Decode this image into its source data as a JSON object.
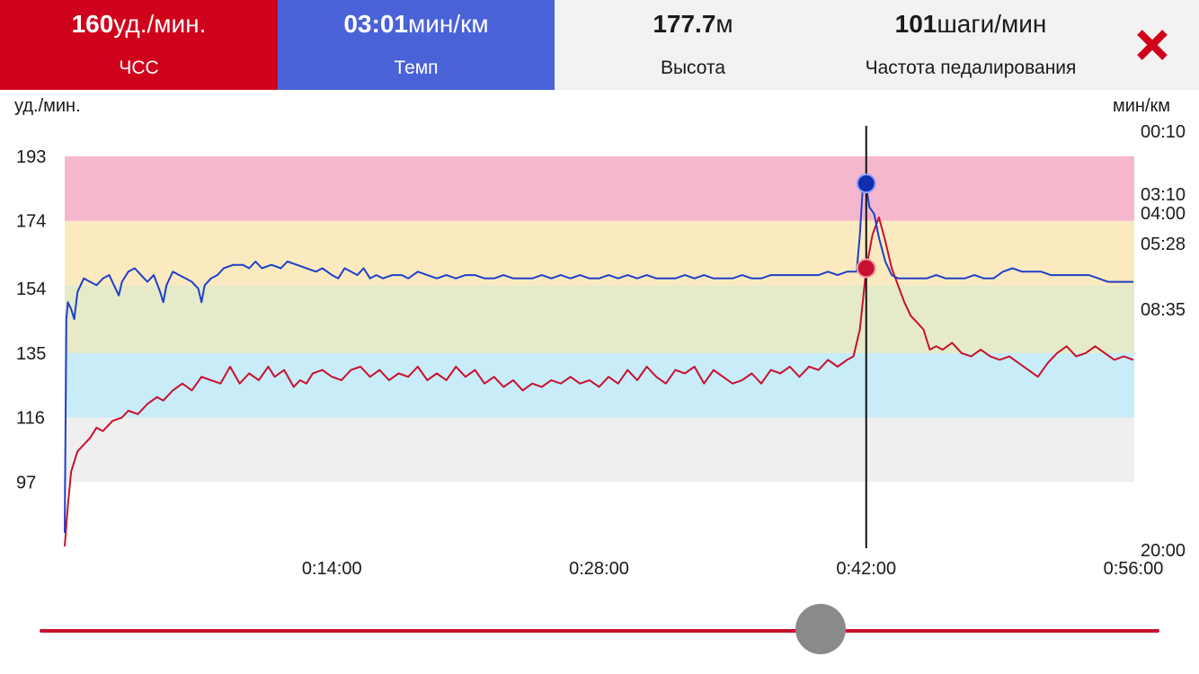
{
  "tabs": [
    {
      "value": "160",
      "unit": "уд./мин.",
      "label": "ЧСС"
    },
    {
      "value": "03:01",
      "unit": "мин/км",
      "label": "Темп"
    },
    {
      "value": "177.7",
      "unit": "м",
      "label": "Высота"
    },
    {
      "value": "101",
      "unit": "шаги/мин",
      "label": "Частота педалирования"
    }
  ],
  "icons": {
    "close": "close-icon",
    "cursor": "cursor-line"
  },
  "colors": {
    "hr": "#d0021b",
    "pace": "#1f3fc9",
    "pace_tab": "#4a62d8"
  },
  "chart_data": {
    "type": "line",
    "x_unit": "seconds",
    "xlim": [
      0,
      3360
    ],
    "x_ticks": [
      "0:14:00",
      "0:28:00",
      "0:42:00",
      "0:56:00"
    ],
    "x_tick_values": [
      840,
      1680,
      2520,
      3360
    ],
    "y_left": {
      "label": "уд./мин.",
      "ticks": [
        193,
        174,
        154,
        135,
        116,
        97
      ],
      "lim": [
        78,
        202
      ]
    },
    "y_right": {
      "label": "мин/км",
      "ticks": [
        "00:10",
        "03:10",
        "04:00",
        "05:28",
        "08:35",
        "20:00"
      ]
    },
    "zones": [
      {
        "from": 97,
        "to": 116,
        "color": "#efefef"
      },
      {
        "from": 116,
        "to": 135,
        "color": "#c8ecf8"
      },
      {
        "from": 135,
        "to": 155,
        "color": "#e5eac8"
      },
      {
        "from": 155,
        "to": 174,
        "color": "#fbeac0"
      },
      {
        "from": 174,
        "to": 193,
        "color": "#f4b7ce"
      }
    ],
    "cursor": {
      "x": 2520,
      "hr": 160,
      "pace_marker": 185
    },
    "series": [
      {
        "key": "hr",
        "color": "#c8102e",
        "points": [
          [
            0,
            78
          ],
          [
            10,
            90
          ],
          [
            20,
            100
          ],
          [
            40,
            106
          ],
          [
            60,
            108
          ],
          [
            80,
            110
          ],
          [
            100,
            113
          ],
          [
            120,
            112
          ],
          [
            150,
            115
          ],
          [
            180,
            116
          ],
          [
            200,
            118
          ],
          [
            230,
            117
          ],
          [
            260,
            120
          ],
          [
            290,
            122
          ],
          [
            310,
            121
          ],
          [
            340,
            124
          ],
          [
            370,
            126
          ],
          [
            400,
            124
          ],
          [
            430,
            128
          ],
          [
            460,
            127
          ],
          [
            490,
            126
          ],
          [
            520,
            131
          ],
          [
            550,
            126
          ],
          [
            580,
            129
          ],
          [
            610,
            127
          ],
          [
            640,
            131
          ],
          [
            660,
            128
          ],
          [
            690,
            130
          ],
          [
            720,
            125
          ],
          [
            740,
            127
          ],
          [
            760,
            126
          ],
          [
            780,
            129
          ],
          [
            810,
            130
          ],
          [
            840,
            128
          ],
          [
            870,
            127
          ],
          [
            900,
            130
          ],
          [
            930,
            131
          ],
          [
            960,
            128
          ],
          [
            990,
            130
          ],
          [
            1020,
            127
          ],
          [
            1050,
            129
          ],
          [
            1080,
            128
          ],
          [
            1110,
            131
          ],
          [
            1140,
            127
          ],
          [
            1170,
            129
          ],
          [
            1200,
            127
          ],
          [
            1230,
            131
          ],
          [
            1260,
            128
          ],
          [
            1290,
            130
          ],
          [
            1320,
            126
          ],
          [
            1350,
            128
          ],
          [
            1380,
            125
          ],
          [
            1410,
            127
          ],
          [
            1440,
            124
          ],
          [
            1470,
            126
          ],
          [
            1500,
            125
          ],
          [
            1530,
            127
          ],
          [
            1560,
            126
          ],
          [
            1590,
            128
          ],
          [
            1620,
            126
          ],
          [
            1650,
            127
          ],
          [
            1680,
            125
          ],
          [
            1710,
            128
          ],
          [
            1740,
            126
          ],
          [
            1770,
            130
          ],
          [
            1800,
            127
          ],
          [
            1830,
            131
          ],
          [
            1860,
            128
          ],
          [
            1890,
            126
          ],
          [
            1920,
            130
          ],
          [
            1950,
            129
          ],
          [
            1980,
            131
          ],
          [
            2010,
            126
          ],
          [
            2040,
            130
          ],
          [
            2070,
            128
          ],
          [
            2100,
            126
          ],
          [
            2130,
            127
          ],
          [
            2160,
            129
          ],
          [
            2190,
            126
          ],
          [
            2220,
            130
          ],
          [
            2250,
            129
          ],
          [
            2280,
            131
          ],
          [
            2310,
            128
          ],
          [
            2340,
            131
          ],
          [
            2370,
            130
          ],
          [
            2400,
            133
          ],
          [
            2430,
            131
          ],
          [
            2460,
            133
          ],
          [
            2480,
            134
          ],
          [
            2500,
            142
          ],
          [
            2520,
            160
          ],
          [
            2540,
            170
          ],
          [
            2560,
            175
          ],
          [
            2580,
            168
          ],
          [
            2600,
            160
          ],
          [
            2620,
            155
          ],
          [
            2640,
            150
          ],
          [
            2660,
            146
          ],
          [
            2680,
            144
          ],
          [
            2700,
            142
          ],
          [
            2720,
            136
          ],
          [
            2740,
            137
          ],
          [
            2760,
            136
          ],
          [
            2790,
            138
          ],
          [
            2820,
            135
          ],
          [
            2850,
            134
          ],
          [
            2880,
            136
          ],
          [
            2910,
            134
          ],
          [
            2940,
            133
          ],
          [
            2970,
            134
          ],
          [
            3000,
            132
          ],
          [
            3030,
            130
          ],
          [
            3060,
            128
          ],
          [
            3090,
            132
          ],
          [
            3120,
            135
          ],
          [
            3150,
            137
          ],
          [
            3180,
            134
          ],
          [
            3210,
            135
          ],
          [
            3240,
            137
          ],
          [
            3270,
            135
          ],
          [
            3300,
            133
          ],
          [
            3330,
            134
          ],
          [
            3360,
            133
          ]
        ]
      },
      {
        "key": "pace",
        "color": "#1f3fc9",
        "points": [
          [
            0,
            82
          ],
          [
            5,
            145
          ],
          [
            10,
            150
          ],
          [
            20,
            148
          ],
          [
            30,
            145
          ],
          [
            40,
            153
          ],
          [
            60,
            157
          ],
          [
            80,
            156
          ],
          [
            100,
            155
          ],
          [
            120,
            157
          ],
          [
            140,
            158
          ],
          [
            160,
            154
          ],
          [
            170,
            152
          ],
          [
            180,
            156
          ],
          [
            200,
            159
          ],
          [
            220,
            160
          ],
          [
            240,
            158
          ],
          [
            260,
            156
          ],
          [
            280,
            158
          ],
          [
            300,
            153
          ],
          [
            310,
            150
          ],
          [
            320,
            155
          ],
          [
            340,
            159
          ],
          [
            360,
            158
          ],
          [
            380,
            157
          ],
          [
            400,
            156
          ],
          [
            420,
            154
          ],
          [
            430,
            150
          ],
          [
            440,
            155
          ],
          [
            460,
            157
          ],
          [
            480,
            158
          ],
          [
            500,
            160
          ],
          [
            530,
            161
          ],
          [
            560,
            161
          ],
          [
            580,
            160
          ],
          [
            600,
            162
          ],
          [
            620,
            160
          ],
          [
            650,
            161
          ],
          [
            680,
            160
          ],
          [
            700,
            162
          ],
          [
            730,
            161
          ],
          [
            760,
            160
          ],
          [
            790,
            159
          ],
          [
            810,
            160
          ],
          [
            840,
            158
          ],
          [
            860,
            157
          ],
          [
            880,
            160
          ],
          [
            900,
            159
          ],
          [
            920,
            158
          ],
          [
            940,
            160
          ],
          [
            960,
            157
          ],
          [
            980,
            158
          ],
          [
            1000,
            157
          ],
          [
            1030,
            158
          ],
          [
            1060,
            158
          ],
          [
            1080,
            157
          ],
          [
            1110,
            159
          ],
          [
            1140,
            158
          ],
          [
            1170,
            157
          ],
          [
            1200,
            158
          ],
          [
            1230,
            157
          ],
          [
            1260,
            158
          ],
          [
            1290,
            158
          ],
          [
            1320,
            157
          ],
          [
            1350,
            157
          ],
          [
            1380,
            158
          ],
          [
            1410,
            157
          ],
          [
            1440,
            157
          ],
          [
            1470,
            157
          ],
          [
            1500,
            158
          ],
          [
            1530,
            157
          ],
          [
            1560,
            158
          ],
          [
            1590,
            157
          ],
          [
            1620,
            158
          ],
          [
            1650,
            157
          ],
          [
            1680,
            157
          ],
          [
            1710,
            158
          ],
          [
            1740,
            157
          ],
          [
            1770,
            158
          ],
          [
            1800,
            157
          ],
          [
            1830,
            158
          ],
          [
            1860,
            157
          ],
          [
            1890,
            157
          ],
          [
            1920,
            157
          ],
          [
            1950,
            158
          ],
          [
            1980,
            157
          ],
          [
            2010,
            158
          ],
          [
            2040,
            157
          ],
          [
            2070,
            157
          ],
          [
            2100,
            157
          ],
          [
            2130,
            158
          ],
          [
            2160,
            157
          ],
          [
            2190,
            157
          ],
          [
            2220,
            158
          ],
          [
            2250,
            158
          ],
          [
            2280,
            158
          ],
          [
            2310,
            158
          ],
          [
            2340,
            158
          ],
          [
            2370,
            158
          ],
          [
            2400,
            159
          ],
          [
            2430,
            158
          ],
          [
            2460,
            159
          ],
          [
            2490,
            159
          ],
          [
            2500,
            170
          ],
          [
            2510,
            185
          ],
          [
            2520,
            184
          ],
          [
            2530,
            178
          ],
          [
            2545,
            176
          ],
          [
            2560,
            169
          ],
          [
            2580,
            162
          ],
          [
            2600,
            158
          ],
          [
            2620,
            157
          ],
          [
            2650,
            157
          ],
          [
            2680,
            157
          ],
          [
            2710,
            157
          ],
          [
            2740,
            158
          ],
          [
            2770,
            157
          ],
          [
            2800,
            157
          ],
          [
            2830,
            157
          ],
          [
            2860,
            158
          ],
          [
            2890,
            157
          ],
          [
            2920,
            157
          ],
          [
            2950,
            159
          ],
          [
            2980,
            160
          ],
          [
            3010,
            159
          ],
          [
            3040,
            159
          ],
          [
            3070,
            159
          ],
          [
            3100,
            158
          ],
          [
            3130,
            158
          ],
          [
            3160,
            158
          ],
          [
            3190,
            158
          ],
          [
            3220,
            158
          ],
          [
            3250,
            157
          ],
          [
            3280,
            156
          ],
          [
            3300,
            156
          ],
          [
            3330,
            156
          ],
          [
            3360,
            156
          ]
        ]
      }
    ]
  }
}
